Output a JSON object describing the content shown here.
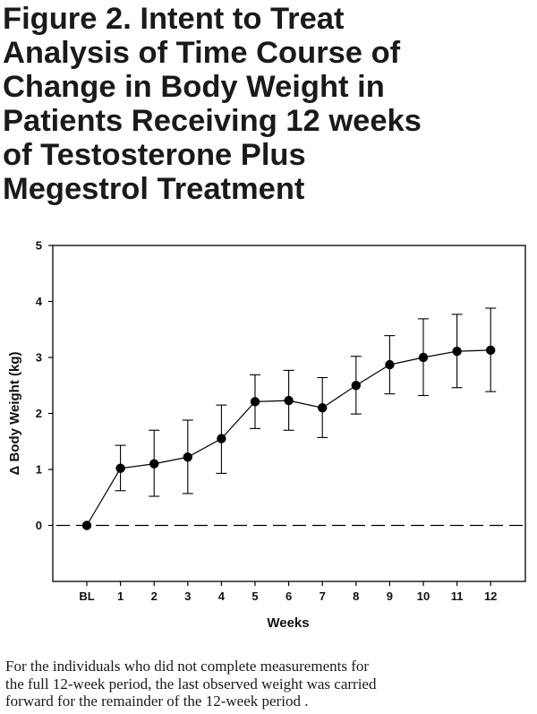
{
  "title_lines": [
    "Figure 2. Intent to Treat",
    "Analysis of Time Course of",
    "Change in Body Weight in",
    "Patients Receiving 12 weeks",
    "of Testosterone Plus",
    "Megestrol Treatment"
  ],
  "footnote_lines": [
    "For the individuals who did not complete measurements for",
    "the full 12-week period, the last observed weight was carried",
    "forward for the remainder of the 12-week period ."
  ],
  "chart_data": {
    "type": "line",
    "title": "Figure 2. Intent to Treat Analysis of Time Course of Change in Body Weight in Patients Receiving 12 weeks of Testosterone Plus Megestrol Treatment",
    "xlabel": "Weeks",
    "ylabel": "Δ Body Weight (kg)",
    "categories": [
      "BL",
      "1",
      "2",
      "3",
      "4",
      "5",
      "6",
      "7",
      "8",
      "9",
      "10",
      "11",
      "12"
    ],
    "y_ticks": [
      "0",
      "1",
      "2",
      "3",
      "4",
      "5"
    ],
    "ylim": [
      -1,
      5
    ],
    "grid": false,
    "legend": "none",
    "reference_line": {
      "y": 0,
      "style": "dashed"
    },
    "series": [
      {
        "values": [
          0,
          1.02,
          1.1,
          1.22,
          1.55,
          2.21,
          2.23,
          2.1,
          2.5,
          2.87,
          3.0,
          3.11,
          3.13
        ],
        "error_low": [
          null,
          0.62,
          0.52,
          0.57,
          0.93,
          1.73,
          1.7,
          1.57,
          1.99,
          2.35,
          2.32,
          2.46,
          2.39
        ],
        "error_high": [
          null,
          1.43,
          1.7,
          1.88,
          2.15,
          2.69,
          2.77,
          2.64,
          3.02,
          3.39,
          3.69,
          3.77,
          3.88
        ]
      }
    ],
    "colors": {
      "line": "#000000",
      "marker": "#000000",
      "axis": "#000000"
    }
  }
}
